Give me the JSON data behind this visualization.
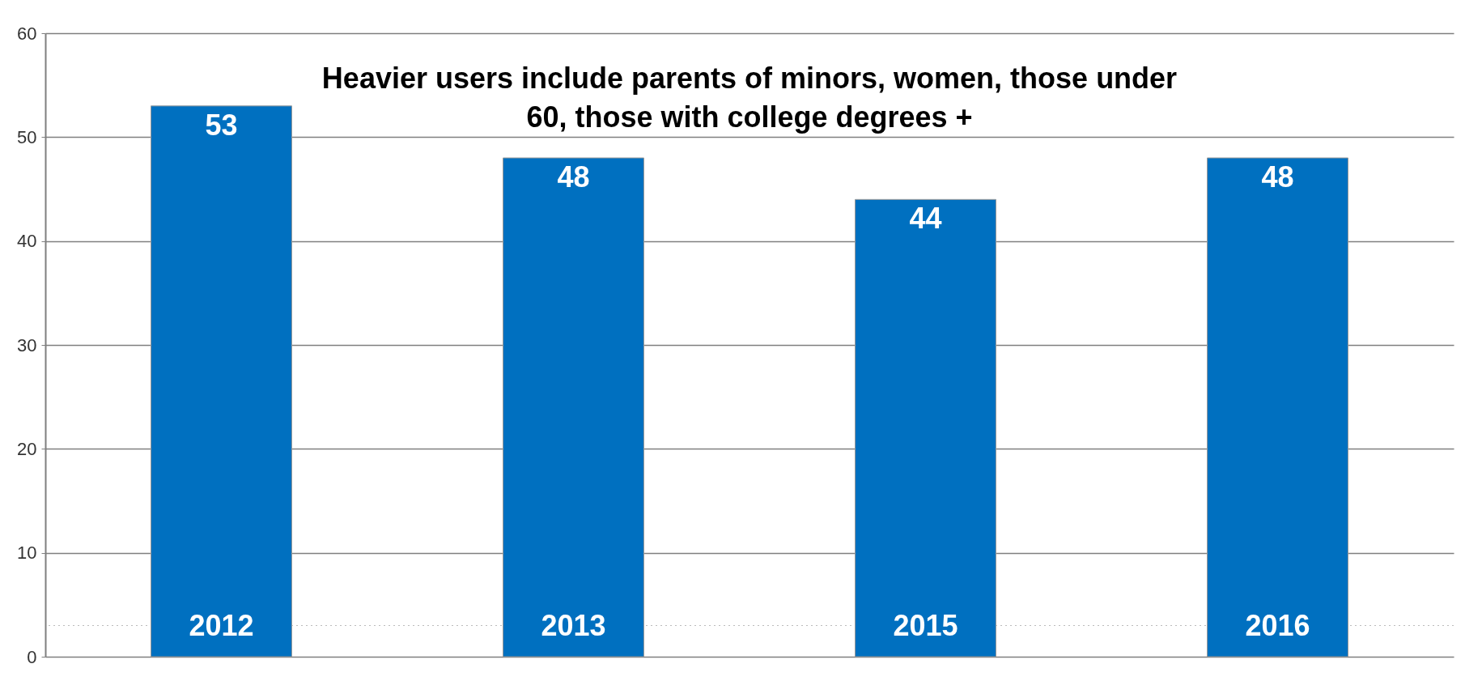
{
  "chart_data": {
    "type": "bar",
    "categories": [
      "2012",
      "2013",
      "2015",
      "2016"
    ],
    "values": [
      53,
      48,
      44,
      48
    ],
    "color": "#0070c0",
    "ylim": [
      0,
      60
    ],
    "yticks": [
      0,
      10,
      20,
      30,
      40,
      50,
      60
    ],
    "grid": "y",
    "data_labels": true,
    "annotations": [
      "Heavier users include parents of minors, women, those under\n60, those with college degrees +"
    ],
    "ref_lines": [
      {
        "axis": "y",
        "value": 3,
        "label": null,
        "color": "#bbbbbb",
        "line_style": "dotted"
      }
    ]
  }
}
